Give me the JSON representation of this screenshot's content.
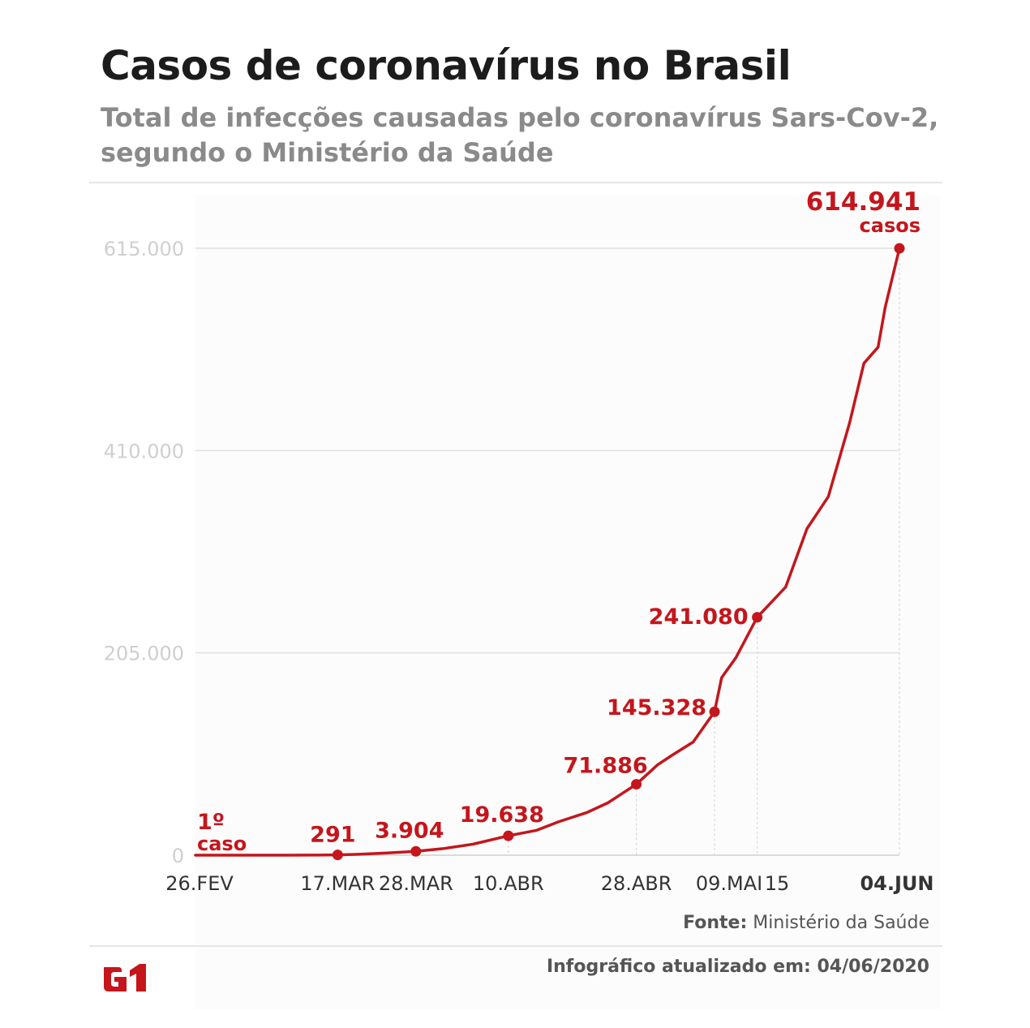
{
  "header": {
    "title": "Casos de coronavírus no Brasil",
    "subtitle": "Total de infecções causadas pelo coronavírus Sars-Cov-2, segundo o Ministério da Saúde"
  },
  "footer": {
    "source_label": "Fonte:",
    "source_text": "Ministério da Saúde",
    "updated_text": "Infográfico atualizado em: 04/06/2020",
    "logo_text": "G1"
  },
  "colors": {
    "line": "#c4161c",
    "grid": "#e0e0e0",
    "logo": "#c4161c"
  },
  "chart_data": {
    "type": "line",
    "title": "Casos de coronavírus no Brasil",
    "subtitle": "Total de infecções causadas pelo coronavírus Sars-Cov-2, segundo o Ministério da Saúde",
    "xlabel": "",
    "ylabel": "",
    "ylim": [
      0,
      615000
    ],
    "yticks": [
      0,
      205000,
      410000,
      615000
    ],
    "ytick_labels": [
      "0",
      "205.000",
      "410.000",
      "615.000"
    ],
    "grid": true,
    "x_start": "2020-02-26",
    "x_end": "2020-06-04",
    "xticks": [
      {
        "date": "2020-02-26",
        "label": "26.FEV",
        "bold": false
      },
      {
        "date": "2020-03-17",
        "label": "17.MAR",
        "bold": false
      },
      {
        "date": "2020-03-28",
        "label": "28.MAR",
        "bold": false
      },
      {
        "date": "2020-04-10",
        "label": "10.ABR",
        "bold": false
      },
      {
        "date": "2020-04-28",
        "label": "28.ABR",
        "bold": false
      },
      {
        "date": "2020-05-09",
        "label": "09.MAI",
        "bold": false
      },
      {
        "date": "2020-05-15",
        "label": "15",
        "bold": false
      },
      {
        "date": "2020-06-04",
        "label": "04.JUN",
        "bold": true
      }
    ],
    "series": [
      {
        "points": [
          [
            "2020-02-26",
            1
          ],
          [
            "2020-03-01",
            2
          ],
          [
            "2020-03-05",
            8
          ],
          [
            "2020-03-10",
            34
          ],
          [
            "2020-03-14",
            121
          ],
          [
            "2020-03-17",
            291
          ],
          [
            "2020-03-20",
            904
          ],
          [
            "2020-03-24",
            2201
          ],
          [
            "2020-03-28",
            3904
          ],
          [
            "2020-04-01",
            6836
          ],
          [
            "2020-04-05",
            11130
          ],
          [
            "2020-04-10",
            19638
          ],
          [
            "2020-04-14",
            25262
          ],
          [
            "2020-04-17",
            33682
          ],
          [
            "2020-04-21",
            43079
          ],
          [
            "2020-04-24",
            52995
          ],
          [
            "2020-04-28",
            71886
          ],
          [
            "2020-05-01",
            91589
          ],
          [
            "2020-05-03",
            101147
          ],
          [
            "2020-05-06",
            114715
          ],
          [
            "2020-05-09",
            145328
          ],
          [
            "2020-05-10",
            180000
          ],
          [
            "2020-05-12",
            200000
          ],
          [
            "2020-05-15",
            241080
          ],
          [
            "2020-05-19",
            271628
          ],
          [
            "2020-05-22",
            330890
          ],
          [
            "2020-05-25",
            363211
          ],
          [
            "2020-05-28",
            438238
          ],
          [
            "2020-05-30",
            498440
          ],
          [
            "2020-06-01",
            514849
          ],
          [
            "2020-06-02",
            555383
          ],
          [
            "2020-06-04",
            614941
          ]
        ]
      }
    ],
    "annotations": [
      {
        "date": "2020-02-26",
        "value": 1,
        "text": "1º",
        "subtext": "caso",
        "marker": false
      },
      {
        "date": "2020-03-17",
        "value": 291,
        "text": "291",
        "marker": true
      },
      {
        "date": "2020-03-28",
        "value": 3904,
        "text": "3.904",
        "marker": true
      },
      {
        "date": "2020-04-10",
        "value": 19638,
        "text": "19.638",
        "marker": true
      },
      {
        "date": "2020-04-28",
        "value": 71886,
        "text": "71.886",
        "marker": true
      },
      {
        "date": "2020-05-09",
        "value": 145328,
        "text": "145.328",
        "marker": true
      },
      {
        "date": "2020-05-15",
        "value": 241080,
        "text": "241.080",
        "marker": true
      },
      {
        "date": "2020-06-04",
        "value": 614941,
        "text": "614.941",
        "subtext": "casos",
        "marker": true
      }
    ]
  }
}
